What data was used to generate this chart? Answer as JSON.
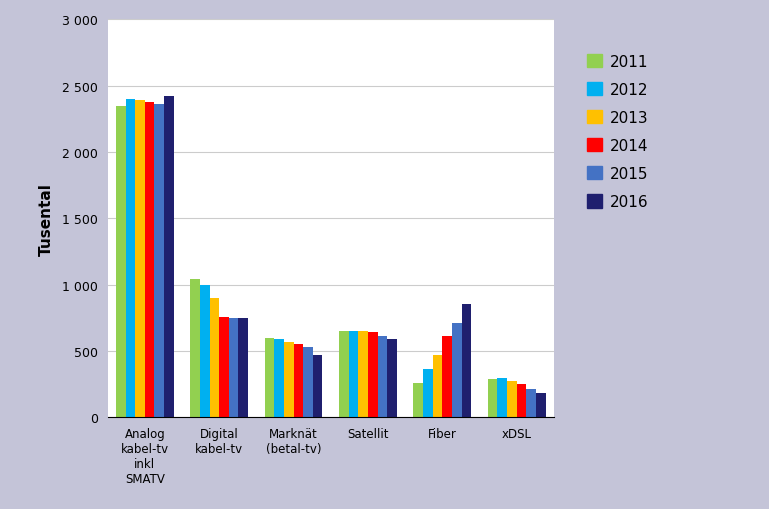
{
  "categories": [
    "Analog\nkabel-tv\ninkl\nSMATV",
    "Digital\nkabel-tv",
    "Marknät\n(betal-tv)",
    "Satellit",
    "Fiber",
    "xDSL"
  ],
  "years": [
    "2011",
    "2012",
    "2013",
    "2014",
    "2015",
    "2016"
  ],
  "values": {
    "2011": [
      2350,
      1040,
      600,
      650,
      260,
      285
    ],
    "2012": [
      2400,
      1000,
      590,
      650,
      360,
      295
    ],
    "2013": [
      2390,
      900,
      565,
      650,
      470,
      275
    ],
    "2014": [
      2380,
      755,
      555,
      640,
      610,
      250
    ],
    "2015": [
      2360,
      745,
      530,
      615,
      710,
      215
    ],
    "2016": [
      2420,
      745,
      470,
      590,
      855,
      185
    ]
  },
  "colors": {
    "2011": "#92d050",
    "2012": "#00b0f0",
    "2013": "#ffc000",
    "2014": "#ff0000",
    "2015": "#4472c4",
    "2016": "#1f1f6e"
  },
  "ylabel": "Tusental",
  "ylim": [
    0,
    3000
  ],
  "yticks": [
    0,
    500,
    1000,
    1500,
    2000,
    2500,
    3000
  ],
  "ytick_labels": [
    "0",
    "500",
    "1 000",
    "1 500",
    "2 000",
    "2 500",
    "3 000"
  ],
  "background_color": "#c4c4d8",
  "plot_bg_color": "#ffffff",
  "bar_width": 0.13
}
